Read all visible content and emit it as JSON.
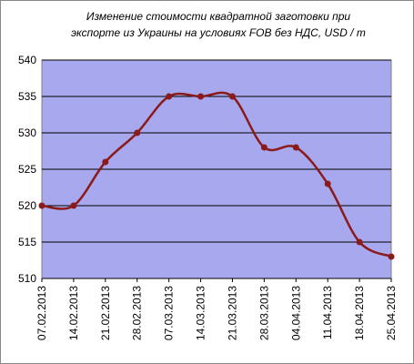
{
  "chart_data": {
    "type": "line",
    "title": [
      "Изменение стоимости квадратной заготовки при",
      "экспорте из Украины на условиях FOB без НДС, USD / т"
    ],
    "categories": [
      "07.02.2013",
      "14.02.2013",
      "21.02.2013",
      "28.02.2013",
      "07.03.2013",
      "14.03.2013",
      "21.03.2013",
      "28.03.2013",
      "04.04.2013",
      "11.04.2013",
      "18.04.2013",
      "25.04.2013"
    ],
    "series": [
      {
        "color": "#8b1a1a",
        "values": [
          520,
          520,
          526,
          530,
          535,
          535,
          535,
          528,
          528,
          523,
          515,
          513
        ]
      }
    ],
    "ylim": [
      510,
      540
    ],
    "yticks": [
      510,
      515,
      520,
      525,
      530,
      535,
      540
    ],
    "grid": true,
    "smooth": true,
    "plot_background": "#a8a8ee"
  }
}
